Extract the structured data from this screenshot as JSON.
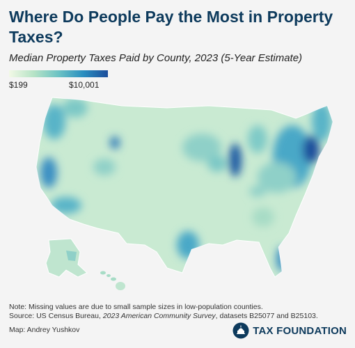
{
  "title": "Where Do People Pay the Most in Property Taxes?",
  "subtitle": "Median Property Taxes Paid by County, 2023 (5-Year Estimate)",
  "legend": {
    "min_label": "$199",
    "max_label": "$10,001",
    "min_value": 199,
    "max_value": 10001,
    "colors": [
      "#f2f9e6",
      "#b6e3c6",
      "#6cc3c4",
      "#2a8fc0",
      "#1c4d9b"
    ]
  },
  "map": {
    "region": "United States counties",
    "shading_scale": [
      "#f2f9e6",
      "#b6e3c6",
      "#6cc3c4",
      "#2a8fc0",
      "#1c4d9b"
    ],
    "high_tax_areas": [
      "Northeast corridor",
      "Northern Illinois",
      "California coast",
      "Pacific Northwest",
      "Texas metros"
    ]
  },
  "footer": {
    "note": "Note: Missing values are due to small sample sizes in low-population counties.",
    "source_prefix": "Source: US Census Bureau, ",
    "source_title": "2023 American Community Survey",
    "source_suffix": ", datasets B25077 and B25103.",
    "credit": "Map: Andrey Yushkov",
    "brand": "TAX FOUNDATION"
  }
}
